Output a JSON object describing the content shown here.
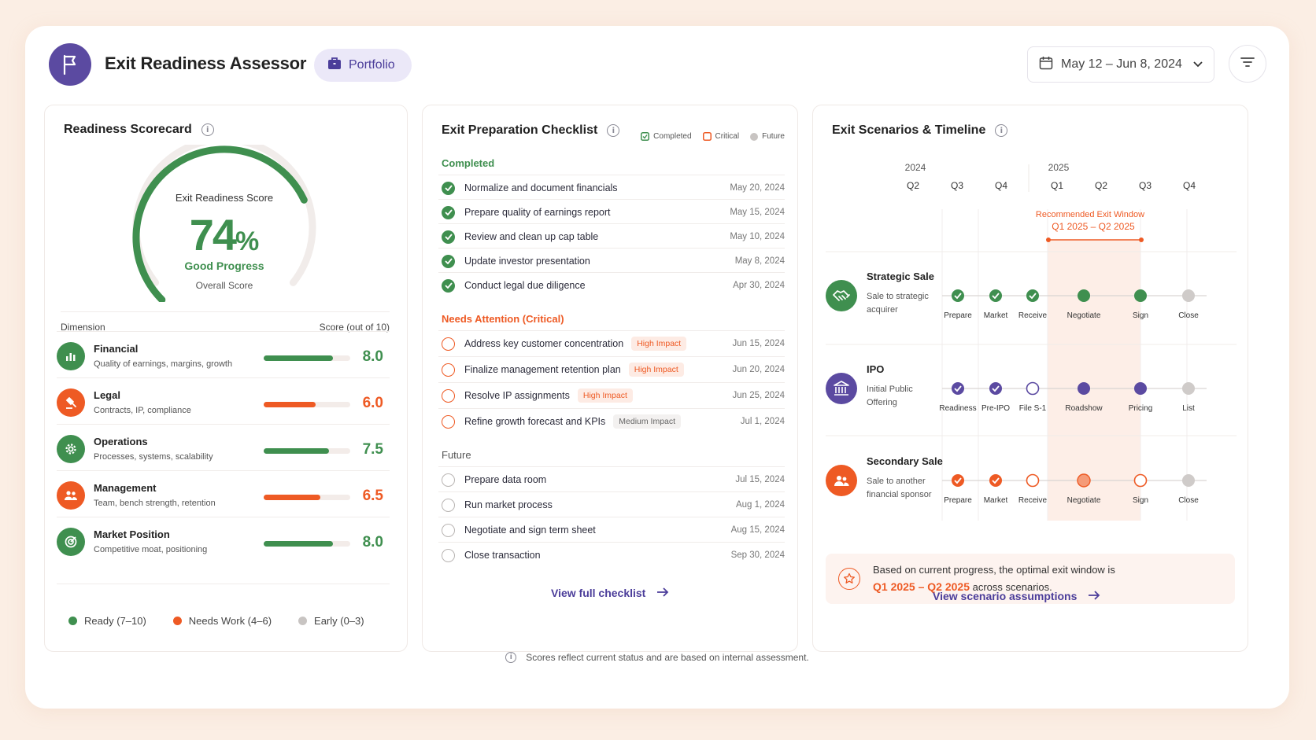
{
  "header": {
    "title": "Exit Readiness Assessor",
    "pill": "Portfolio",
    "date_range": "May 12 – Jun 8, 2024",
    "logo_icon": "flag-icon",
    "pill_icon": "briefcase-icon"
  },
  "scorecard": {
    "title": "Readiness Scorecard",
    "gauge_label": "Exit Readiness Score",
    "score": "74",
    "score_pct": 74,
    "percent_sign": "%",
    "status": "Good Progress",
    "sub": "Overall Score",
    "col_dimension": "Dimension",
    "col_score": "Score (out of 10)",
    "dimensions": [
      {
        "name": "Financial",
        "desc": "Quality of earnings, margins, growth",
        "score": "8.0",
        "value": 8.0,
        "status": "ready",
        "icon": "bar-chart-icon"
      },
      {
        "name": "Legal",
        "desc": "Contracts, IP, compliance",
        "score": "6.0",
        "value": 6.0,
        "status": "needs-work",
        "icon": "gavel-icon"
      },
      {
        "name": "Operations",
        "desc": "Processes, systems, scalability",
        "score": "7.5",
        "value": 7.5,
        "status": "ready",
        "icon": "gear-icon"
      },
      {
        "name": "Management",
        "desc": "Team, bench strength, retention",
        "score": "6.5",
        "value": 6.5,
        "status": "needs-work",
        "icon": "team-icon"
      },
      {
        "name": "Market Position",
        "desc": "Competitive moat, positioning",
        "score": "8.0",
        "value": 8.0,
        "status": "ready",
        "icon": "target-icon"
      }
    ],
    "legend": [
      "Ready (7–10)",
      "Needs Work (4–6)",
      "Early (0–3)"
    ],
    "colors": {
      "ready": "#3f8f4f",
      "needs_work": "#ee5a24",
      "early": "#c8c4c2"
    }
  },
  "checklist": {
    "title": "Exit Preparation Checklist",
    "legend": [
      "Completed",
      "Critical",
      "Future"
    ],
    "completed_label": "Completed",
    "critical_label": "Needs Attention (Critical)",
    "future_label": "Future",
    "completed": [
      {
        "task": "Normalize and document financials",
        "date": "May 20, 2024"
      },
      {
        "task": "Prepare quality of earnings report",
        "date": "May 15, 2024"
      },
      {
        "task": "Review and clean up cap table",
        "date": "May 10, 2024"
      },
      {
        "task": "Update investor presentation",
        "date": "May 8, 2024"
      },
      {
        "task": "Conduct legal due diligence",
        "date": "Apr 30, 2024"
      }
    ],
    "critical": [
      {
        "task": "Address key customer concentration",
        "tag": "High Impact",
        "tag_type": "high",
        "date": "Jun 15, 2024"
      },
      {
        "task": "Finalize management retention plan",
        "tag": "High Impact",
        "tag_type": "high",
        "date": "Jun 20, 2024"
      },
      {
        "task": "Resolve IP assignments",
        "tag": "High Impact",
        "tag_type": "high",
        "date": "Jun 25, 2024"
      },
      {
        "task": "Refine growth forecast and KPIs",
        "tag": "Medium Impact",
        "tag_type": "medium",
        "date": "Jul 1, 2024"
      }
    ],
    "future": [
      {
        "task": "Prepare data room",
        "date": "Jul 15, 2024"
      },
      {
        "task": "Run market process",
        "date": "Aug 1, 2024"
      },
      {
        "task": "Negotiate and sign term sheet",
        "date": "Aug 15, 2024"
      },
      {
        "task": "Close transaction",
        "date": "Sep 30, 2024"
      }
    ],
    "link": "View full checklist"
  },
  "scenarios": {
    "title": "Exit Scenarios & Timeline",
    "years": [
      "2024",
      "2025"
    ],
    "quarters": [
      "Q2",
      "Q3",
      "Q4",
      "Q1",
      "Q2",
      "Q3",
      "Q4"
    ],
    "window_label": "Recommended Exit Window",
    "window_range": "Q1 2025 – Q2 2025",
    "rows": [
      {
        "name": "Strategic Sale",
        "desc": [
          "Sale to strategic",
          "acquirer"
        ],
        "icon": "handshake-icon",
        "color": "#3f8f4f",
        "steps": [
          {
            "label": "Prepare",
            "state": "done"
          },
          {
            "label": "Market",
            "state": "done"
          },
          {
            "label": "Receive",
            "state": "done"
          },
          {
            "label": "Negotiate",
            "state": "filled"
          },
          {
            "label": "Sign",
            "state": "filled"
          },
          {
            "label": "Close",
            "state": "future"
          }
        ]
      },
      {
        "name": "IPO",
        "desc": [
          "Initial Public",
          "Offering"
        ],
        "icon": "bank-icon",
        "color": "#5b4aa1",
        "steps": [
          {
            "label": "Readiness",
            "state": "done"
          },
          {
            "label": "Pre-IPO",
            "state": "done"
          },
          {
            "label": "File S-1",
            "state": "open"
          },
          {
            "label": "Roadshow",
            "state": "filled"
          },
          {
            "label": "Pricing",
            "state": "filled"
          },
          {
            "label": "List",
            "state": "future"
          }
        ]
      },
      {
        "name": "Secondary Sale",
        "desc": [
          "Sale to another",
          "financial sponsor"
        ],
        "icon": "people-icon",
        "color": "#ee5a24",
        "steps": [
          {
            "label": "Prepare",
            "state": "done"
          },
          {
            "label": "Market",
            "state": "done"
          },
          {
            "label": "Receive",
            "state": "open"
          },
          {
            "label": "Negotiate",
            "state": "soft"
          },
          {
            "label": "Sign",
            "state": "open"
          },
          {
            "label": "Close",
            "state": "future"
          }
        ]
      }
    ],
    "note_text": "Based on current progress, the optimal exit window is",
    "note_range": "Q1 2025 – Q2 2025",
    "note_tail": "across scenarios.",
    "link": "View scenario assumptions"
  },
  "footer": "Scores reflect current status and are based on internal assessment."
}
